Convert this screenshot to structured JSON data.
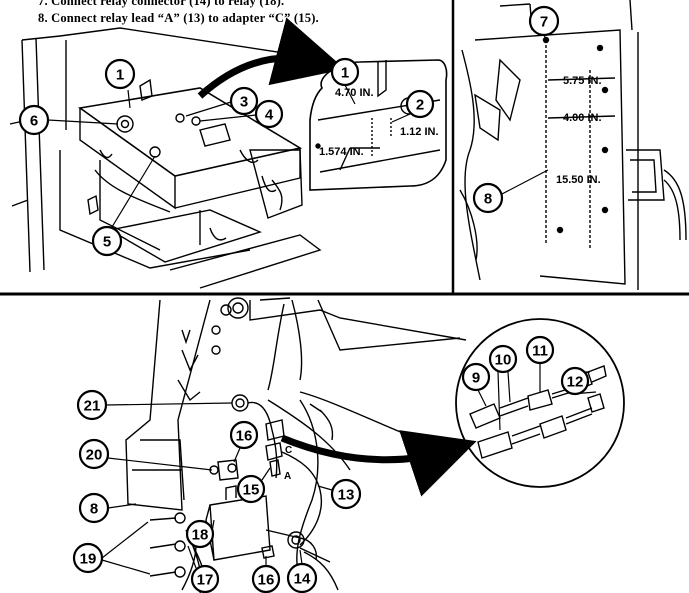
{
  "instructions": {
    "step7": "7. Connect relay connector (14) to relay (18).",
    "step8": "8. Connect relay lead “A” (13) to adapter “C” (15)."
  },
  "top_left": {
    "callouts": [
      "1",
      "6",
      "3",
      "4",
      "5"
    ]
  },
  "inset_dimensions": {
    "callouts": [
      "1",
      "2"
    ],
    "dims": [
      "4.70 IN.",
      "1.12 IN.",
      "1.574 IN."
    ]
  },
  "top_right": {
    "callouts": [
      "7",
      "8"
    ],
    "dims": [
      "5.75 IN.",
      "4.00 IN.",
      "15.50 IN."
    ]
  },
  "bottom": {
    "callouts": [
      "21",
      "20",
      "16",
      "8",
      "15",
      "13",
      "19",
      "18",
      "17",
      "16",
      "14"
    ],
    "letters": [
      "C",
      "A"
    ]
  },
  "bottom_inset": {
    "callouts": [
      "9",
      "10",
      "11",
      "12"
    ]
  }
}
